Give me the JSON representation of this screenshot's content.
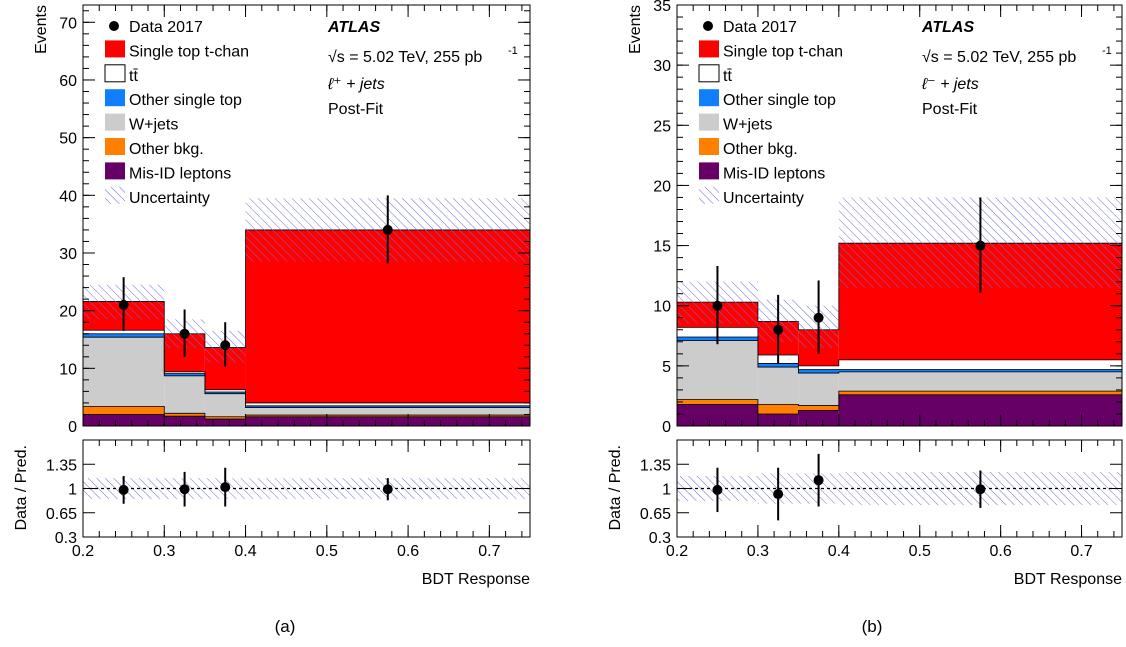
{
  "chart_data": [
    {
      "type": "bar",
      "stacked": true,
      "panel_caption": "(a)",
      "experiment": "ATLAS",
      "energy_text": "√s = 5.02 TeV, 255 pb",
      "energy_exponent": "-1",
      "channel_text": "ℓ⁺ + jets",
      "fit_text": "Post-Fit",
      "xlabel": "BDT Response",
      "ylabel": "Events",
      "ratio_ylabel": "Data / Pred.",
      "xlim": [
        0.2,
        0.75
      ],
      "ylim": [
        0,
        73
      ],
      "ratio_ylim": [
        0.3,
        1.7
      ],
      "x_ticks": [
        "0.2",
        "0.3",
        "0.4",
        "0.5",
        "0.6",
        "0.7"
      ],
      "y_ticks": [
        "0",
        "10",
        "20",
        "30",
        "40",
        "50",
        "60",
        "70"
      ],
      "ratio_y_ticks": [
        "0.3",
        "0.65",
        "1",
        "1.35"
      ],
      "bin_edges": [
        0.2,
        0.3,
        0.35,
        0.4,
        0.75
      ],
      "series": [
        {
          "name": "Mis-ID leptons",
          "values": [
            2.0,
            1.7,
            1.2,
            1.6
          ]
        },
        {
          "name": "Other bkg.",
          "values": [
            1.4,
            0.5,
            0.4,
            0.3
          ]
        },
        {
          "name": "W+jets",
          "values": [
            12.0,
            6.5,
            4.0,
            1.3
          ]
        },
        {
          "name": "Other single top",
          "values": [
            0.6,
            0.4,
            0.3,
            0.3
          ]
        },
        {
          "name": "tt̄",
          "values": [
            0.6,
            0.3,
            0.4,
            0.5
          ]
        },
        {
          "name": "Single top t-chan",
          "values": [
            5.0,
            6.6,
            7.3,
            30.0
          ]
        }
      ],
      "uncertainty": {
        "name": "Uncertainty",
        "low": [
          18.5,
          13.5,
          11.0,
          28.5
        ],
        "high": [
          24.5,
          18.5,
          16.5,
          39.5
        ]
      },
      "data": {
        "name": "Data 2017",
        "x": [
          0.25,
          0.325,
          0.375,
          0.575
        ],
        "y": [
          21,
          16,
          14,
          34
        ],
        "err_low": [
          4.5,
          4,
          3.7,
          5.8
        ],
        "err_high": [
          4.8,
          4.2,
          4,
          6
        ]
      },
      "ratio": {
        "y": [
          0.98,
          0.99,
          1.02,
          0.99
        ],
        "err": [
          0.2,
          0.25,
          0.28,
          0.16
        ],
        "band": [
          0.15,
          0.15,
          0.15,
          0.15
        ]
      }
    },
    {
      "type": "bar",
      "stacked": true,
      "panel_caption": "(b)",
      "experiment": "ATLAS",
      "energy_text": "√s = 5.02 TeV, 255 pb",
      "energy_exponent": "-1",
      "channel_text": "ℓ⁻ + jets",
      "fit_text": "Post-Fit",
      "xlabel": "BDT Response",
      "ylabel": "Events",
      "ratio_ylabel": "Data / Pred.",
      "xlim": [
        0.2,
        0.75
      ],
      "ylim": [
        0,
        35
      ],
      "ratio_ylim": [
        0.3,
        1.7
      ],
      "x_ticks": [
        "0.2",
        "0.3",
        "0.4",
        "0.5",
        "0.6",
        "0.7"
      ],
      "y_ticks": [
        "0",
        "5",
        "10",
        "15",
        "20",
        "25",
        "30",
        "35"
      ],
      "ratio_y_ticks": [
        "0.3",
        "0.65",
        "1",
        "1.35"
      ],
      "bin_edges": [
        0.2,
        0.3,
        0.35,
        0.4,
        0.75
      ],
      "series": [
        {
          "name": "Mis-ID leptons",
          "values": [
            1.8,
            1.0,
            1.3,
            2.6
          ]
        },
        {
          "name": "Other bkg.",
          "values": [
            0.4,
            0.8,
            0.4,
            0.3
          ]
        },
        {
          "name": "W+jets",
          "values": [
            4.9,
            3.1,
            2.7,
            1.6
          ]
        },
        {
          "name": "Other single top",
          "values": [
            0.3,
            0.3,
            0.3,
            0.2
          ]
        },
        {
          "name": "tt̄",
          "values": [
            0.8,
            0.7,
            0.3,
            0.8
          ]
        },
        {
          "name": "Single top t-chan",
          "values": [
            2.1,
            2.8,
            3.0,
            9.7
          ]
        }
      ],
      "uncertainty": {
        "name": "Uncertainty",
        "low": [
          8.5,
          7.0,
          6.5,
          11.5
        ],
        "high": [
          12.0,
          10.5,
          10.0,
          19.0
        ]
      },
      "data": {
        "name": "Data 2017",
        "x": [
          0.25,
          0.325,
          0.375,
          0.575
        ],
        "y": [
          10,
          8,
          9,
          15
        ],
        "err_low": [
          3.2,
          2.8,
          3.0,
          3.9
        ],
        "err_high": [
          3.3,
          2.9,
          3.1,
          4.0
        ]
      },
      "ratio": {
        "y": [
          0.98,
          0.92,
          1.12,
          0.99
        ],
        "err": [
          0.32,
          0.38,
          0.38,
          0.27
        ],
        "band": [
          0.18,
          0.22,
          0.22,
          0.24
        ]
      }
    }
  ],
  "colors": {
    "Single top t-chan": "#ff0000",
    "tt̄": "#ffffff",
    "Other single top": "#0f7fff",
    "W+jets": "#cccccc",
    "Other bkg.": "#ff7f00",
    "Mis-ID leptons": "#660066",
    "Uncertainty": "#6f6fd8"
  },
  "legend_order": [
    "Data 2017",
    "Single top t-chan",
    "tt̄",
    "Other single top",
    "W+jets",
    "Other bkg.",
    "Mis-ID leptons",
    "Uncertainty"
  ]
}
